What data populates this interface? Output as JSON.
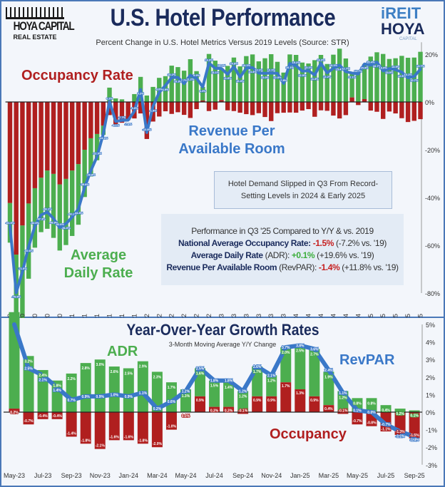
{
  "header": {
    "title": "U.S. Hotel Performance",
    "subtitle": "Percent Change in U.S. Hotel Metrics Versus 2019 Levels (Source: STR)",
    "logo_left": {
      "line1": "HOYA CAPITAL",
      "line2": "REAL ESTATE"
    },
    "logo_right": {
      "line1": "iREIT",
      "line2": "HOYA",
      "line3": "CAPITAL"
    }
  },
  "annotations": {
    "occupancy": "Occupancy Rate",
    "revpar_line1": "Revenue Per",
    "revpar_line2": "Available Room",
    "adr_line1": "Average",
    "adr_line2": "Daily Rate",
    "box1_line1": "Hotel Demand Slipped in Q3 From Record-",
    "box1_line2": "Setting Levels in 2024 & Early 2025",
    "box2": {
      "heading": "Performance in Q3 '25 Compared to Y/Y & vs. 2019",
      "occ_label": "National Average Occupancy Rate:",
      "occ_yy": "-1.5%",
      "occ_19": "(-7.2% vs. '19)",
      "adr_label": "Average Daily Rate",
      "adr_abbr": "(ADR):",
      "adr_yy": "+0.1%",
      "adr_19": "(+19.6% vs. '19)",
      "rev_label": "Revenue Per Available Room",
      "rev_abbr": "(RevPAR):",
      "rev_yy": "-1.4%",
      "rev_19": "(+11.8% vs. '19)"
    },
    "bottom_title": "Year-Over-Year Growth Rates",
    "bottom_subtitle": "3-Month Moving Average Y/Y Change",
    "bottom_adr": "ADR",
    "bottom_revpar": "RevPAR",
    "bottom_occupancy": "Occupancy"
  },
  "colors": {
    "occupancy": "#b01f1f",
    "adr": "#4cae4f",
    "revpar": "#3a78c8",
    "navy": "#1a2b5c"
  },
  "chart_data": [
    {
      "type": "bar",
      "title": "U.S. Hotel Performance",
      "subtitle": "Percent Change in U.S. Hotel Metrics Versus 2019 Levels (Source: STR)",
      "frequency": "monthly",
      "x_tick_labels": [
        "Mar-20",
        "May-20",
        "Jul-20",
        "Sep-20",
        "Nov-20",
        "Jan-21",
        "Mar-21",
        "May-21",
        "Jul-21",
        "Sep-21",
        "Nov-21",
        "Jan-22",
        "Mar-22",
        "May-22",
        "Jul-22",
        "Sep-22",
        "Nov-22",
        "Jan-23",
        "Mar-23",
        "May-23",
        "Jul-23",
        "Sep-23",
        "Nov-23",
        "Jan-24",
        "Mar-24",
        "May-24",
        "Jul-24",
        "Sep-24",
        "Nov-24",
        "Jan-25",
        "Mar-25",
        "May-25",
        "Jul-25",
        "Sep-25"
      ],
      "y_tick_labels": [
        "20%",
        "0%",
        "-20%",
        "-40%",
        "-60%",
        "-80%"
      ],
      "ylim": [
        -80,
        25
      ],
      "grid": false,
      "series": [
        {
          "name": "Occupancy Rate",
          "type": "bar",
          "values": [
            -42.3,
            -63.9,
            -51.7,
            -42.5,
            -36.1,
            -31.7,
            -28.7,
            -30.1,
            -34.5,
            -32.2,
            -28.7,
            -26.0,
            -20.0,
            -15.2,
            -13.4,
            -9.9,
            -5.5,
            -9.5,
            -8.7,
            -7.6,
            -6.9,
            -4.8,
            -15.5,
            -8.2,
            -6.1,
            -3.9,
            -5.0,
            -4.3,
            -5.4,
            -6.7,
            -3.0,
            0.6,
            -3.8,
            -3.2,
            0.8,
            -3.5,
            -3.8,
            -4.5,
            -5.1,
            -5.5,
            -4.7,
            -6.3,
            -8.0,
            -4.7,
            -4.5,
            -4.4,
            -4.5,
            -3.6,
            -3.0,
            -6.2,
            -3.5,
            -3.7,
            -5.7,
            -6.9,
            -5.5,
            1.9,
            -1.3,
            1.2,
            -3.6,
            -4.1,
            -7.1,
            -4.0,
            -4.8,
            -6.8,
            -8.4,
            -7.9,
            -7.2
          ]
        },
        {
          "name": "Average Daily Rate",
          "type": "bar",
          "values": [
            -16.6,
            -45.0,
            -40.0,
            -31.5,
            -24.9,
            -22.8,
            -24.4,
            -26.8,
            -27.7,
            -27.7,
            -27.4,
            -25.4,
            -19.8,
            -16.0,
            -11.0,
            -3.9,
            6.0,
            1.5,
            1.1,
            0.0,
            3.3,
            10.5,
            2.7,
            6.3,
            10.1,
            10.8,
            15.2,
            14.6,
            13.1,
            17.9,
            12.9,
            5.7,
            20.1,
            17.3,
            13.2,
            15.1,
            18.6,
            14.9,
            19.2,
            19.9,
            17.0,
            18.3,
            20.0,
            16.8,
            12.3,
            19.9,
            19.7,
            16.5,
            16.1,
            17.5,
            19.7,
            15.9,
            19.8,
            22.3,
            18.2,
            10.2,
            13.0,
            14.7,
            19.0,
            20.8,
            20.1,
            18.0,
            18.3,
            19.3,
            18.5,
            18.6,
            21.0
          ]
        },
        {
          "name": "Revenue Per Available Room",
          "type": "line",
          "values": [
            -51.9,
            -79.9,
            -71.0,
            -60.6,
            -52.0,
            -47.3,
            -46.1,
            -48.8,
            -52.6,
            -51.0,
            -48.2,
            -44.8,
            -35.8,
            -28.8,
            -22.9,
            -13.4,
            0.2,
            -8.1,
            -7.7,
            -7.6,
            -3.9,
            5.2,
            -12.8,
            -1.9,
            4.0,
            6.9,
            10.2,
            10.3,
            7.7,
            11.2,
            9.9,
            6.3,
            16.3,
            14.1,
            14.0,
            11.6,
            14.8,
            10.4,
            14.1,
            14.4,
            12.1,
            12.0,
            12.1,
            12.0,
            7.8,
            16.1,
            15.2,
            12.9,
            13.1,
            11.3,
            16.2,
            12.2,
            14.1,
            15.4,
            12.7,
            12.1,
            11.7,
            15.9,
            15.4,
            16.7,
            13.0,
            14.0,
            13.5,
            12.5,
            10.1,
            10.7,
            13.7
          ]
        }
      ]
    },
    {
      "type": "bar",
      "title": "Year-Over-Year Growth Rates",
      "subtitle": "3-Month Moving Average Y/Y Change",
      "frequency": "monthly",
      "x_tick_labels": [
        "May-23",
        "Jul-23",
        "Sep-23",
        "Nov-23",
        "Jan-24",
        "Mar-24",
        "May-24",
        "Jul-24",
        "Sep-24",
        "Nov-24",
        "Jan-25",
        "Mar-25",
        "May-25",
        "Jul-25",
        "Sep-25"
      ],
      "y_tick_labels": [
        "5%",
        "4%",
        "3%",
        "2%",
        "1%",
        "0%",
        "-1%",
        "-2%",
        "-3%"
      ],
      "ylim": [
        -3,
        5
      ],
      "grid": false,
      "series": [
        {
          "name": "ADR",
          "type": "bar",
          "values": [
            5.5,
            3.2,
            2.4,
            1.8,
            2.2,
            2.8,
            3.0,
            2.6,
            2.5,
            2.9,
            2.3,
            1.7,
            1.3,
            1.6,
            1.5,
            1.4,
            1.2,
            1.7,
            1.2,
            2.0,
            2.5,
            2.7,
            1.9,
            1.2,
            0.8,
            0.8,
            0.4,
            0.2,
            0.1
          ]
        },
        {
          "name": "Occupancy",
          "type": "bar",
          "values": [
            0.2,
            -0.7,
            -0.4,
            -0.4,
            -1.4,
            -1.8,
            -2.1,
            -1.6,
            -1.6,
            -1.8,
            -2.0,
            -1.0,
            0.0,
            0.9,
            0.3,
            0.3,
            -0.1,
            0.9,
            0.9,
            1.7,
            1.3,
            0.9,
            0.4,
            -0.1,
            -0.7,
            -0.8,
            -1.1,
            -1.3,
            -1.5
          ]
        },
        {
          "name": "RevPAR",
          "type": "line",
          "values": [
            5.5,
            2.5,
            2.1,
            1.4,
            0.7,
            0.9,
            0.9,
            1.0,
            0.9,
            1.1,
            0.2,
            0.6,
            1.2,
            2.5,
            1.8,
            1.8,
            1.2,
            2.6,
            2.1,
            3.7,
            3.8,
            3.6,
            2.4,
            1.1,
            0.1,
            0.0,
            -0.7,
            -1.1,
            -1.4
          ]
        }
      ]
    }
  ]
}
